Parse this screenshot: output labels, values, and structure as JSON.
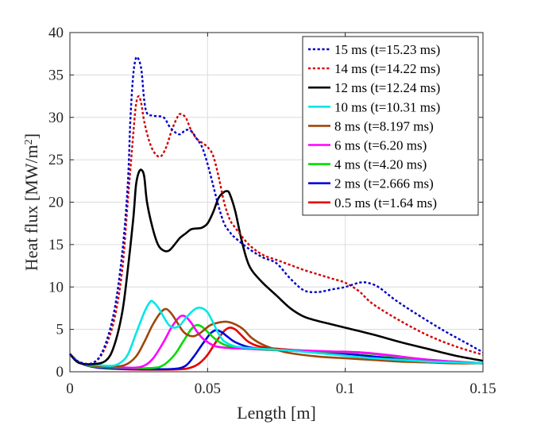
{
  "chart_data": {
    "type": "line",
    "xlabel": "Length [m]",
    "ylabel": "Heat flux [MW/m",
    "ylabel_sup": "2",
    "ylabel_close": "]",
    "xlim": [
      0,
      0.15
    ],
    "ylim": [
      0,
      40
    ],
    "xticks": [
      0,
      0.05,
      0.1,
      0.15
    ],
    "xtick_labels": [
      "0",
      "0.05",
      "0.1",
      "0.15"
    ],
    "yticks": [
      0,
      5,
      10,
      15,
      20,
      25,
      30,
      35,
      40
    ],
    "ytick_labels": [
      "0",
      "5",
      "10",
      "15",
      "20",
      "25",
      "30",
      "35",
      "40"
    ],
    "grid": true,
    "legend_position": "top-right",
    "series": [
      {
        "name": "15 ms (t=15.23 ms)",
        "color": "#0000c8",
        "dash": "dotted",
        "points": [
          [
            0,
            2.1
          ],
          [
            0.003,
            1.2
          ],
          [
            0.008,
            1.0
          ],
          [
            0.012,
            2.5
          ],
          [
            0.016,
            7
          ],
          [
            0.019,
            14
          ],
          [
            0.021,
            22
          ],
          [
            0.022,
            30
          ],
          [
            0.023,
            35
          ],
          [
            0.024,
            37
          ],
          [
            0.025,
            36.8
          ],
          [
            0.026,
            35.5
          ],
          [
            0.027,
            32
          ],
          [
            0.028,
            30.5
          ],
          [
            0.03,
            30.2
          ],
          [
            0.034,
            30
          ],
          [
            0.036,
            29
          ],
          [
            0.038,
            28.3
          ],
          [
            0.04,
            28
          ],
          [
            0.042,
            28.5
          ],
          [
            0.044,
            28.4
          ],
          [
            0.046,
            27.5
          ],
          [
            0.048,
            26.5
          ],
          [
            0.05,
            24.5
          ],
          [
            0.052,
            22
          ],
          [
            0.054,
            19.5
          ],
          [
            0.056,
            17.5
          ],
          [
            0.058,
            16.5
          ],
          [
            0.06,
            15.8
          ],
          [
            0.065,
            14.5
          ],
          [
            0.07,
            13.5
          ],
          [
            0.075,
            12.8
          ],
          [
            0.08,
            11
          ],
          [
            0.085,
            9.6
          ],
          [
            0.09,
            9.4
          ],
          [
            0.095,
            9.7
          ],
          [
            0.1,
            10
          ],
          [
            0.105,
            10.5
          ],
          [
            0.108,
            10.5
          ],
          [
            0.112,
            10
          ],
          [
            0.118,
            8.5
          ],
          [
            0.125,
            7
          ],
          [
            0.135,
            5
          ],
          [
            0.145,
            3.2
          ],
          [
            0.15,
            2.3
          ]
        ]
      },
      {
        "name": "14 ms (t=14.22 ms)",
        "color": "#d20000",
        "dash": "dotted",
        "points": [
          [
            0,
            2.1
          ],
          [
            0.003,
            1.2
          ],
          [
            0.008,
            1.0
          ],
          [
            0.012,
            2.3
          ],
          [
            0.016,
            6
          ],
          [
            0.019,
            12
          ],
          [
            0.021,
            20
          ],
          [
            0.023,
            28
          ],
          [
            0.024,
            31.5
          ],
          [
            0.025,
            32.5
          ],
          [
            0.026,
            31.5
          ],
          [
            0.027,
            29.5
          ],
          [
            0.029,
            27
          ],
          [
            0.031,
            25.7
          ],
          [
            0.033,
            25.4
          ],
          [
            0.035,
            26.5
          ],
          [
            0.037,
            28.5
          ],
          [
            0.039,
            30
          ],
          [
            0.04,
            30.4
          ],
          [
            0.042,
            30
          ],
          [
            0.044,
            28.5
          ],
          [
            0.046,
            27.5
          ],
          [
            0.048,
            27
          ],
          [
            0.05,
            26.5
          ],
          [
            0.052,
            25.5
          ],
          [
            0.054,
            23
          ],
          [
            0.056,
            20
          ],
          [
            0.058,
            18
          ],
          [
            0.06,
            17
          ],
          [
            0.065,
            15
          ],
          [
            0.07,
            13.8
          ],
          [
            0.075,
            13.2
          ],
          [
            0.08,
            12.6
          ],
          [
            0.085,
            12
          ],
          [
            0.09,
            11.5
          ],
          [
            0.095,
            11
          ],
          [
            0.1,
            10.5
          ],
          [
            0.105,
            9.5
          ],
          [
            0.11,
            8
          ],
          [
            0.12,
            6
          ],
          [
            0.13,
            4.3
          ],
          [
            0.14,
            3.0
          ],
          [
            0.15,
            2.0
          ]
        ]
      },
      {
        "name": "12 ms (t=12.24 ms)",
        "color": "#000000",
        "dash": "solid",
        "points": [
          [
            0,
            2.1
          ],
          [
            0.003,
            1.1
          ],
          [
            0.008,
            0.9
          ],
          [
            0.013,
            1.3
          ],
          [
            0.016,
            3
          ],
          [
            0.019,
            7
          ],
          [
            0.021,
            12
          ],
          [
            0.023,
            18
          ],
          [
            0.024,
            22
          ],
          [
            0.025,
            23.5
          ],
          [
            0.026,
            23.8
          ],
          [
            0.027,
            23
          ],
          [
            0.028,
            20
          ],
          [
            0.03,
            17
          ],
          [
            0.032,
            15
          ],
          [
            0.034,
            14.3
          ],
          [
            0.036,
            14.3
          ],
          [
            0.038,
            15
          ],
          [
            0.04,
            15.8
          ],
          [
            0.042,
            16.3
          ],
          [
            0.044,
            16.8
          ],
          [
            0.046,
            16.9
          ],
          [
            0.048,
            17
          ],
          [
            0.05,
            17.5
          ],
          [
            0.052,
            18.8
          ],
          [
            0.054,
            20.5
          ],
          [
            0.056,
            21.2
          ],
          [
            0.057,
            21.3
          ],
          [
            0.058,
            21
          ],
          [
            0.06,
            19
          ],
          [
            0.062,
            16
          ],
          [
            0.064,
            13.5
          ],
          [
            0.066,
            12
          ],
          [
            0.07,
            10.5
          ],
          [
            0.075,
            9
          ],
          [
            0.08,
            7.5
          ],
          [
            0.085,
            6.5
          ],
          [
            0.09,
            6
          ],
          [
            0.095,
            5.6
          ],
          [
            0.1,
            5.2
          ],
          [
            0.11,
            4.4
          ],
          [
            0.12,
            3.5
          ],
          [
            0.13,
            2.7
          ],
          [
            0.14,
            1.9
          ],
          [
            0.15,
            1.3
          ]
        ]
      },
      {
        "name": "10 ms (t=10.31 ms)",
        "color": "#00e6e6",
        "dash": "solid",
        "points": [
          [
            0,
            2.1
          ],
          [
            0.004,
            1.0
          ],
          [
            0.01,
            0.8
          ],
          [
            0.015,
            0.7
          ],
          [
            0.018,
            1.0
          ],
          [
            0.021,
            2
          ],
          [
            0.024,
            4.5
          ],
          [
            0.027,
            7
          ],
          [
            0.029,
            8.2
          ],
          [
            0.03,
            8.3
          ],
          [
            0.032,
            7.6
          ],
          [
            0.034,
            6.5
          ],
          [
            0.036,
            5.5
          ],
          [
            0.038,
            5.2
          ],
          [
            0.04,
            5.5
          ],
          [
            0.042,
            6.3
          ],
          [
            0.044,
            7
          ],
          [
            0.046,
            7.5
          ],
          [
            0.048,
            7.5
          ],
          [
            0.05,
            7
          ],
          [
            0.052,
            5.8
          ],
          [
            0.054,
            4.5
          ],
          [
            0.056,
            3.6
          ],
          [
            0.06,
            3.0
          ],
          [
            0.065,
            2.8
          ],
          [
            0.07,
            2.7
          ],
          [
            0.08,
            2.5
          ],
          [
            0.09,
            2.2
          ],
          [
            0.1,
            1.9
          ],
          [
            0.11,
            1.6
          ],
          [
            0.12,
            1.4
          ],
          [
            0.13,
            1.2
          ],
          [
            0.14,
            1.1
          ],
          [
            0.15,
            1.0
          ]
        ]
      },
      {
        "name": "8 ms (t=8.197 ms)",
        "color": "#a0460a",
        "dash": "solid",
        "points": [
          [
            0,
            2.1
          ],
          [
            0.004,
            1.0
          ],
          [
            0.01,
            0.7
          ],
          [
            0.015,
            0.6
          ],
          [
            0.02,
            0.8
          ],
          [
            0.024,
            1.8
          ],
          [
            0.027,
            3.5
          ],
          [
            0.03,
            5.5
          ],
          [
            0.033,
            7
          ],
          [
            0.035,
            7.4
          ],
          [
            0.037,
            6.8
          ],
          [
            0.039,
            5.8
          ],
          [
            0.041,
            4.8
          ],
          [
            0.043,
            4.3
          ],
          [
            0.045,
            4.2
          ],
          [
            0.047,
            4.5
          ],
          [
            0.049,
            5
          ],
          [
            0.051,
            5.5
          ],
          [
            0.054,
            5.8
          ],
          [
            0.057,
            5.9
          ],
          [
            0.06,
            5.6
          ],
          [
            0.063,
            5
          ],
          [
            0.066,
            4
          ],
          [
            0.07,
            3.2
          ],
          [
            0.075,
            2.6
          ],
          [
            0.08,
            2.2
          ],
          [
            0.09,
            1.8
          ],
          [
            0.1,
            1.6
          ],
          [
            0.11,
            1.4
          ],
          [
            0.12,
            1.2
          ],
          [
            0.13,
            1.1
          ],
          [
            0.14,
            1.0
          ],
          [
            0.15,
            1.0
          ]
        ]
      },
      {
        "name": "6 ms (t=6.20 ms)",
        "color": "#ff00ff",
        "dash": "solid",
        "points": [
          [
            0,
            2.1
          ],
          [
            0.004,
            1.0
          ],
          [
            0.01,
            0.7
          ],
          [
            0.02,
            0.5
          ],
          [
            0.026,
            0.6
          ],
          [
            0.03,
            1.5
          ],
          [
            0.034,
            3.5
          ],
          [
            0.037,
            5.3
          ],
          [
            0.04,
            6.5
          ],
          [
            0.042,
            6.5
          ],
          [
            0.044,
            5.8
          ],
          [
            0.046,
            4.8
          ],
          [
            0.048,
            4
          ],
          [
            0.05,
            3.5
          ],
          [
            0.053,
            3.0
          ],
          [
            0.058,
            2.8
          ],
          [
            0.065,
            2.7
          ],
          [
            0.075,
            2.6
          ],
          [
            0.085,
            2.5
          ],
          [
            0.095,
            2.4
          ],
          [
            0.105,
            2.3
          ],
          [
            0.115,
            2.0
          ],
          [
            0.125,
            1.6
          ],
          [
            0.135,
            1.3
          ],
          [
            0.15,
            1.0
          ]
        ]
      },
      {
        "name": "4 ms (t=4.20 ms)",
        "color": "#00dc00",
        "dash": "solid",
        "points": [
          [
            0,
            2.1
          ],
          [
            0.004,
            1.0
          ],
          [
            0.01,
            0.6
          ],
          [
            0.02,
            0.45
          ],
          [
            0.03,
            0.45
          ],
          [
            0.034,
            0.8
          ],
          [
            0.038,
            2
          ],
          [
            0.041,
            3.5
          ],
          [
            0.044,
            5
          ],
          [
            0.046,
            5.5
          ],
          [
            0.048,
            5.3
          ],
          [
            0.05,
            4.7
          ],
          [
            0.053,
            3.8
          ],
          [
            0.056,
            3.2
          ],
          [
            0.06,
            2.9
          ],
          [
            0.07,
            2.6
          ],
          [
            0.08,
            2.5
          ],
          [
            0.09,
            2.4
          ],
          [
            0.1,
            2.3
          ],
          [
            0.11,
            2.1
          ],
          [
            0.12,
            1.7
          ],
          [
            0.13,
            1.4
          ],
          [
            0.14,
            1.2
          ],
          [
            0.15,
            1.0
          ]
        ]
      },
      {
        "name": "2 ms (t=2.666 ms)",
        "color": "#0000dc",
        "dash": "solid",
        "points": [
          [
            0,
            2.1
          ],
          [
            0.004,
            1.0
          ],
          [
            0.01,
            0.5
          ],
          [
            0.02,
            0.35
          ],
          [
            0.03,
            0.3
          ],
          [
            0.038,
            0.35
          ],
          [
            0.042,
            0.7
          ],
          [
            0.045,
            1.8
          ],
          [
            0.048,
            3.2
          ],
          [
            0.051,
            4.5
          ],
          [
            0.053,
            4.9
          ],
          [
            0.055,
            4.7
          ],
          [
            0.057,
            4.2
          ],
          [
            0.06,
            3.5
          ],
          [
            0.065,
            2.9
          ],
          [
            0.07,
            2.7
          ],
          [
            0.08,
            2.5
          ],
          [
            0.09,
            2.3
          ],
          [
            0.1,
            2.1
          ],
          [
            0.11,
            1.8
          ],
          [
            0.12,
            1.5
          ],
          [
            0.13,
            1.3
          ],
          [
            0.14,
            1.1
          ],
          [
            0.15,
            1.0
          ]
        ]
      },
      {
        "name": "0.5 ms (t=1.64 ms)",
        "color": "#e60000",
        "dash": "solid",
        "points": [
          [
            0,
            2.1
          ],
          [
            0.004,
            1.0
          ],
          [
            0.01,
            0.5
          ],
          [
            0.02,
            0.3
          ],
          [
            0.03,
            0.25
          ],
          [
            0.04,
            0.3
          ],
          [
            0.044,
            0.5
          ],
          [
            0.047,
            1
          ],
          [
            0.05,
            2
          ],
          [
            0.053,
            3.5
          ],
          [
            0.056,
            4.8
          ],
          [
            0.058,
            5.2
          ],
          [
            0.06,
            5
          ],
          [
            0.062,
            4.4
          ],
          [
            0.065,
            3.5
          ],
          [
            0.07,
            2.9
          ],
          [
            0.08,
            2.6
          ],
          [
            0.09,
            2.4
          ],
          [
            0.1,
            2.1
          ],
          [
            0.11,
            1.8
          ],
          [
            0.12,
            1.5
          ],
          [
            0.13,
            1.3
          ],
          [
            0.14,
            1.1
          ],
          [
            0.15,
            1.0
          ]
        ]
      }
    ]
  }
}
